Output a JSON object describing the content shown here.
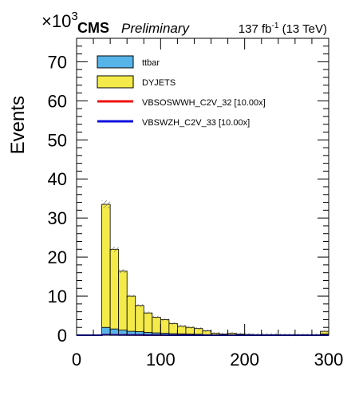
{
  "header": {
    "experiment": "CMS",
    "status": "Preliminary",
    "lumi_value": "137 fb",
    "lumi_exp": "-1",
    "lumi_energy": " (13 TeV)",
    "y_multiplier_base": "×10",
    "y_multiplier_exp": "3"
  },
  "chart_data": {
    "type": "bar",
    "subtype": "stacked-histogram",
    "ylabel": "Events",
    "xlabel": "",
    "xlim": [
      0,
      300
    ],
    "ylim": [
      0,
      76
    ],
    "y_unit_scale": 1000,
    "x_ticks": [
      0,
      100,
      200,
      300
    ],
    "y_ticks": [
      0,
      10,
      20,
      30,
      40,
      50,
      60,
      70
    ],
    "grid": false,
    "legend_position": "top-left",
    "bin_edges": [
      0,
      10,
      20,
      30,
      40,
      50,
      60,
      70,
      80,
      90,
      100,
      110,
      120,
      130,
      140,
      150,
      160,
      170,
      180,
      190,
      200,
      210,
      220,
      230,
      240,
      250,
      260,
      270,
      280,
      290,
      300
    ],
    "series": [
      {
        "name": "ttbar",
        "kind": "stack",
        "color": "#56b4e9",
        "values": [
          0,
          0,
          0,
          2.0,
          1.6,
          1.3,
          1.0,
          0.9,
          0.7,
          0.6,
          0.5,
          0.4,
          0.35,
          0.3,
          0.25,
          0.15,
          0.1,
          0.05,
          0.1,
          0.05,
          0.05,
          0.03,
          0.03,
          0.03,
          0.02,
          0.02,
          0.02,
          0.01,
          0.01,
          0.3
        ]
      },
      {
        "name": "DYJETS",
        "kind": "stack",
        "color": "#f4eb4b",
        "values": [
          0,
          0,
          0,
          31.5,
          20.4,
          15.1,
          9.0,
          6.7,
          5.0,
          4.0,
          3.5,
          2.6,
          1.95,
          1.7,
          1.45,
          0.95,
          0.4,
          0.25,
          0.4,
          0.25,
          0.15,
          0.12,
          0.12,
          0.12,
          0.08,
          0.08,
          0.08,
          0.09,
          0.09,
          0.7
        ]
      },
      {
        "name": "VBSOSWWH_C2V_32 [10.00x]",
        "kind": "line",
        "color": "#ee1111",
        "values": [
          0,
          0,
          0,
          0.15,
          0.12,
          0.1,
          0.08,
          0.06,
          0.05,
          0.04,
          0.03,
          0.02,
          0.02,
          0.02,
          0.01,
          0.01,
          0.01,
          0.01,
          0.01,
          0.01,
          0,
          0,
          0,
          0,
          0,
          0,
          0,
          0,
          0,
          0
        ]
      },
      {
        "name": "VBSWZH_C2V_33 [10.00x]",
        "kind": "line",
        "color": "#1111dd",
        "values": [
          0,
          0,
          0,
          0.1,
          0.08,
          0.06,
          0.05,
          0.04,
          0.03,
          0.02,
          0.02,
          0.01,
          0.01,
          0.01,
          0.01,
          0.01,
          0,
          0,
          0,
          0,
          0,
          0,
          0,
          0,
          0,
          0,
          0,
          0,
          0,
          0
        ]
      }
    ],
    "uncertainty_band": "hatched"
  }
}
